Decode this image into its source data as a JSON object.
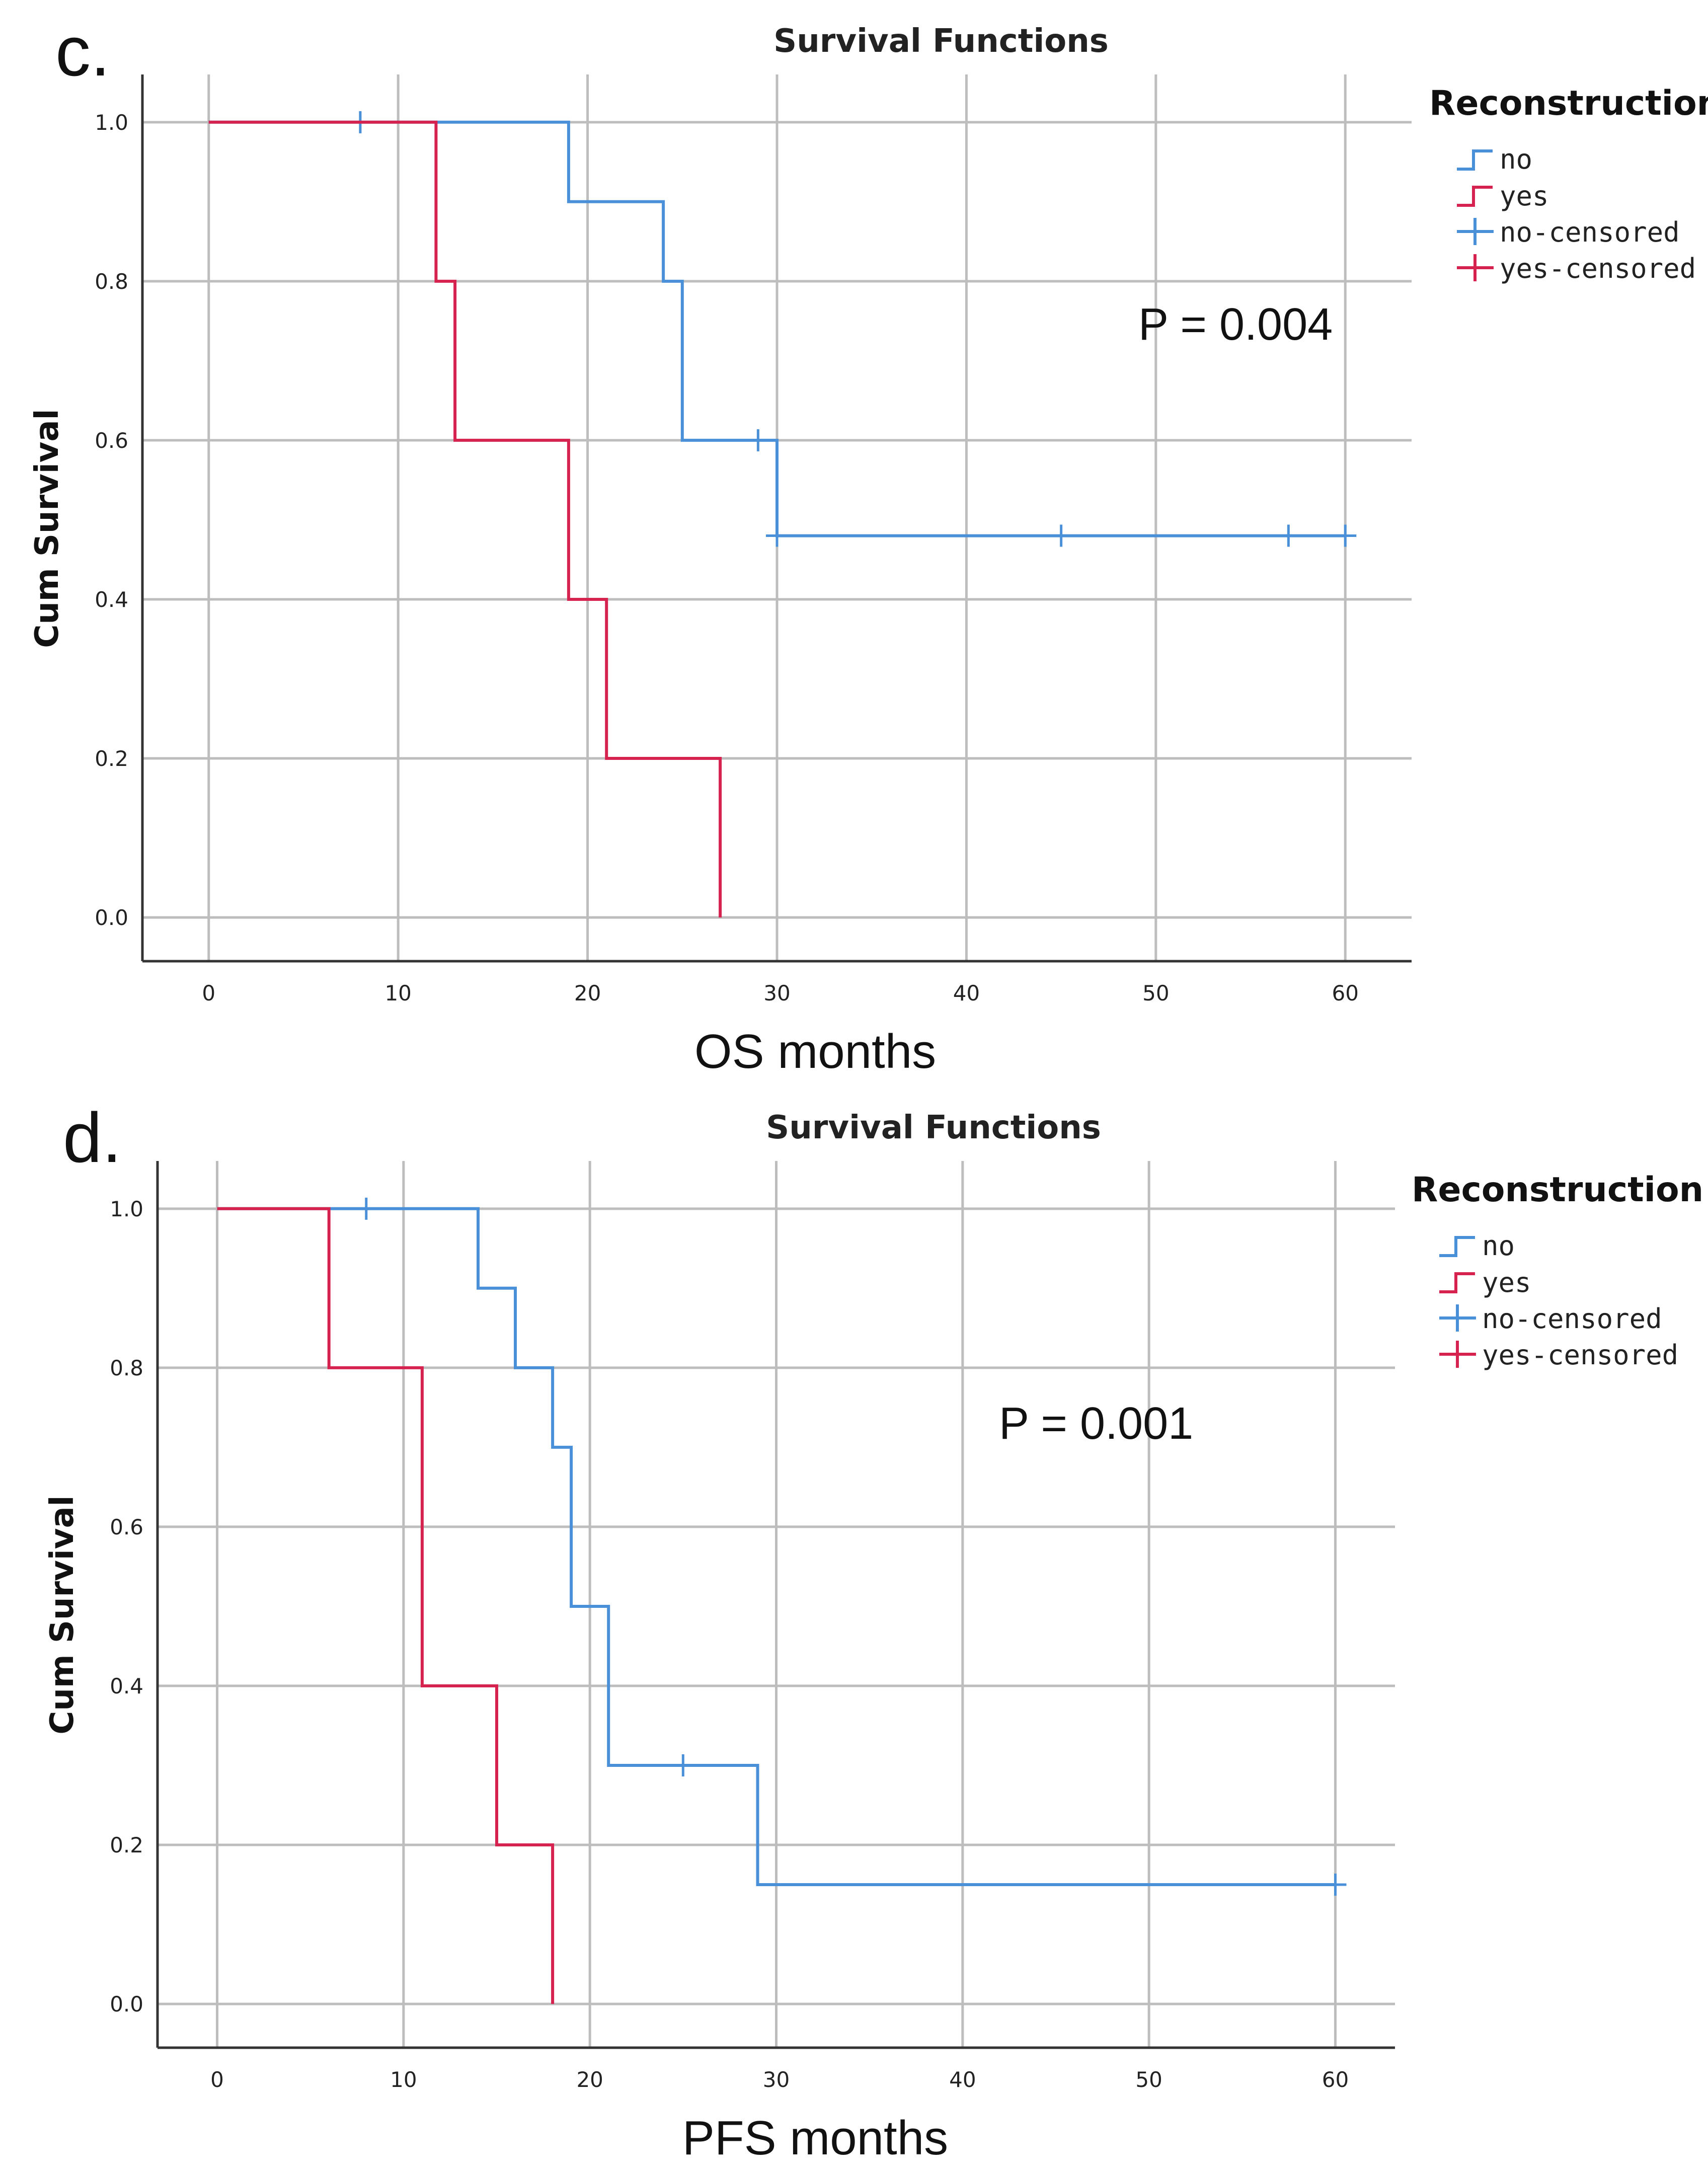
{
  "chart_data": [
    {
      "type": "line",
      "panel_label": "c.",
      "title": "Survival Functions",
      "xlabel": "OS months",
      "ylabel": "Cum Survival",
      "xlim": [
        -3.5,
        63.5
      ],
      "ylim": [
        -0.055,
        1.06
      ],
      "xticks": [
        0,
        10,
        20,
        30,
        40,
        50,
        60
      ],
      "yticks": [
        0.0,
        0.2,
        0.4,
        0.6,
        0.8,
        1.0
      ],
      "p_value": "P = 0.004",
      "legend": {
        "title": "Reconstruction",
        "position": "right-top",
        "entries": [
          "no",
          "yes",
          "no-censored",
          "yes-censored"
        ]
      },
      "series": [
        {
          "name": "no",
          "color": "#4a90d9",
          "x": [
            0,
            19,
            19,
            24,
            24,
            25,
            25,
            30,
            30,
            60
          ],
          "y": [
            1.0,
            1.0,
            0.9,
            0.9,
            0.8,
            0.8,
            0.6,
            0.6,
            0.48,
            0.48
          ],
          "censored": [
            {
              "x": 8,
              "y": 1.0
            },
            {
              "x": 29,
              "y": 0.6
            },
            {
              "x": 30,
              "y": 0.48
            },
            {
              "x": 45,
              "y": 0.48
            },
            {
              "x": 57,
              "y": 0.48
            },
            {
              "x": 60,
              "y": 0.48
            }
          ]
        },
        {
          "name": "yes",
          "color": "#d6224f",
          "x": [
            0,
            12,
            12,
            13,
            13,
            19,
            19,
            21,
            21,
            27,
            27
          ],
          "y": [
            1.0,
            1.0,
            0.8,
            0.8,
            0.6,
            0.6,
            0.4,
            0.4,
            0.2,
            0.2,
            0.0
          ],
          "censored": []
        }
      ]
    },
    {
      "type": "line",
      "panel_label": "d.",
      "title": "Survival Functions",
      "xlabel": "PFS months",
      "ylabel": "Cum Survival",
      "xlim": [
        -3.2,
        63.2
      ],
      "ylim": [
        -0.055,
        1.06
      ],
      "xticks": [
        0,
        10,
        20,
        30,
        40,
        50,
        60
      ],
      "yticks": [
        0.0,
        0.2,
        0.4,
        0.6,
        0.8,
        1.0
      ],
      "p_value": "P = 0.001",
      "legend": {
        "title": "Reconstruction",
        "position": "right-top",
        "entries": [
          "no",
          "yes",
          "no-censored",
          "yes-censored"
        ]
      },
      "series": [
        {
          "name": "no",
          "color": "#4a90d9",
          "x": [
            0,
            14,
            14,
            16,
            16,
            18,
            18,
            19,
            19,
            21,
            21,
            29,
            29,
            60
          ],
          "y": [
            1.0,
            1.0,
            0.9,
            0.9,
            0.8,
            0.8,
            0.7,
            0.7,
            0.5,
            0.5,
            0.3,
            0.3,
            0.15,
            0.15
          ],
          "censored": [
            {
              "x": 8,
              "y": 1.0
            },
            {
              "x": 25,
              "y": 0.3
            },
            {
              "x": 60,
              "y": 0.15
            }
          ]
        },
        {
          "name": "yes",
          "color": "#d6224f",
          "x": [
            0,
            6,
            6,
            11,
            11,
            15,
            15,
            18,
            18
          ],
          "y": [
            1.0,
            1.0,
            0.8,
            0.8,
            0.4,
            0.4,
            0.2,
            0.2,
            0.0
          ],
          "censored": []
        }
      ]
    }
  ]
}
